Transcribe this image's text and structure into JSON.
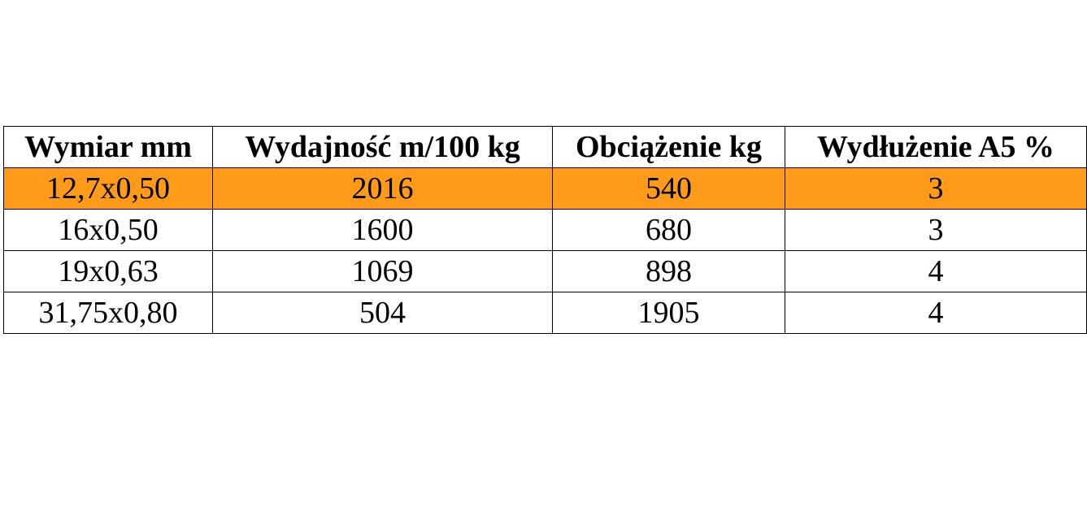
{
  "table": {
    "header": [
      "Wymiar mm",
      "Wydajność m/100 kg",
      "Obciążenie kg",
      "Wydłużenie A5 %"
    ],
    "rows": [
      [
        "12,7x0,50",
        "2016",
        "540",
        "3"
      ],
      [
        "16x0,50",
        "1600",
        "680",
        "3"
      ],
      [
        "19x0,63",
        "1069",
        "898",
        "4"
      ],
      [
        "31,75x0,80",
        "504",
        "1905",
        "4"
      ]
    ]
  }
}
